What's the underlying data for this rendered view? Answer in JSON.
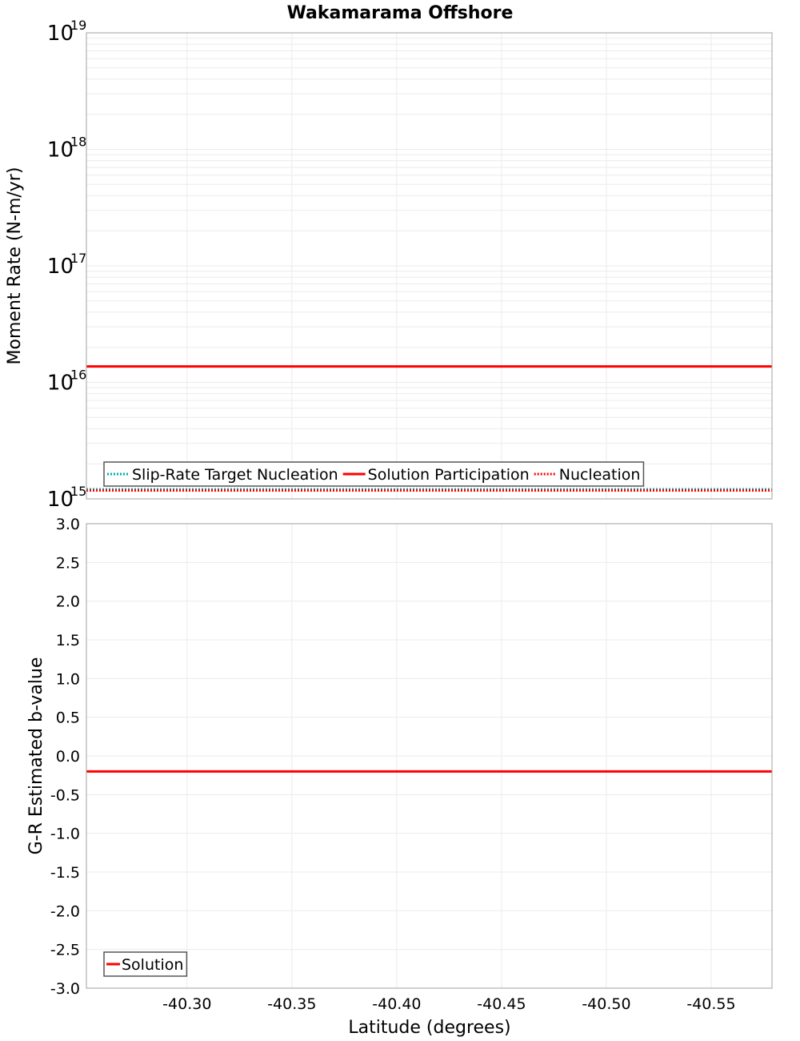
{
  "chart_data": [
    {
      "type": "line",
      "title": "Wakamarama Offshore",
      "xlabel": "",
      "ylabel": "Moment Rate (N-m/yr)",
      "yscale": "log",
      "ylim": [
        1000000000000000.0,
        1e+19
      ],
      "xlim": [
        -40.252,
        -40.579
      ],
      "x_inverted": true,
      "y_ticks": [
        {
          "base": "10",
          "exp": "19",
          "value": 1e+19
        },
        {
          "base": "10",
          "exp": "18",
          "value": 1e+18
        },
        {
          "base": "10",
          "exp": "17",
          "value": 1e+17
        },
        {
          "base": "10",
          "exp": "16",
          "value": 1e+16
        },
        {
          "base": "10",
          "exp": "15",
          "value": 1000000000000000.0
        }
      ],
      "grid": true,
      "legend_position": "lower-left",
      "x": [
        -40.252,
        -40.345,
        -40.416,
        -40.477,
        -40.521,
        -40.579
      ],
      "series": [
        {
          "name": "Slip-Rate Target Nucleation",
          "color": "#00b0b0",
          "style": "dotted",
          "values": [
            1210000000000000.0,
            1210000000000000.0,
            1210000000000000.0,
            1210000000000000.0,
            1210000000000000.0,
            1210000000000000.0
          ]
        },
        {
          "name": "Solution Participation",
          "color": "#ff0000",
          "style": "solid",
          "values": [
            1.37e+16,
            1.37e+16,
            1.37e+16,
            1.37e+16,
            1.37e+16,
            1.37e+16
          ]
        },
        {
          "name": "Nucleation",
          "color": "#ff0000",
          "style": "dotted",
          "values": [
            1180000000000000.0,
            1180000000000000.0,
            1180000000000000.0,
            1180000000000000.0,
            1180000000000000.0,
            1180000000000000.0
          ]
        }
      ]
    },
    {
      "type": "line",
      "title": "",
      "xlabel": "Latitude (degrees)",
      "ylabel": "G-R Estimated b-value",
      "ylim": [
        -3.0,
        3.0
      ],
      "xlim": [
        -40.252,
        -40.579
      ],
      "x_inverted": true,
      "x_ticks": [
        "-40.30",
        "-40.35",
        "-40.40",
        "-40.45",
        "-40.50",
        "-40.55"
      ],
      "x_tick_values": [
        -40.3,
        -40.35,
        -40.4,
        -40.45,
        -40.5,
        -40.55
      ],
      "y_ticks": [
        "3.0",
        "2.5",
        "2.0",
        "1.5",
        "1.0",
        "0.5",
        "0.0",
        "-0.5",
        "-1.0",
        "-1.5",
        "-2.0",
        "-2.5",
        "-3.0"
      ],
      "y_tick_values": [
        3.0,
        2.5,
        2.0,
        1.5,
        1.0,
        0.5,
        0.0,
        -0.5,
        -1.0,
        -1.5,
        -2.0,
        -2.5,
        -3.0
      ],
      "grid": true,
      "legend_position": "lower-left",
      "x": [
        -40.252,
        -40.345,
        -40.416,
        -40.477,
        -40.521,
        -40.579
      ],
      "series": [
        {
          "name": "Solution",
          "color": "#ff0000",
          "style": "solid",
          "values": [
            -0.2,
            -0.2,
            -0.2,
            -0.2,
            -0.2,
            -0.2
          ]
        }
      ]
    }
  ],
  "colors": {
    "grid": "#ebebeb",
    "axis_frame": "#a0a0a0",
    "legend_border": "#555555"
  }
}
